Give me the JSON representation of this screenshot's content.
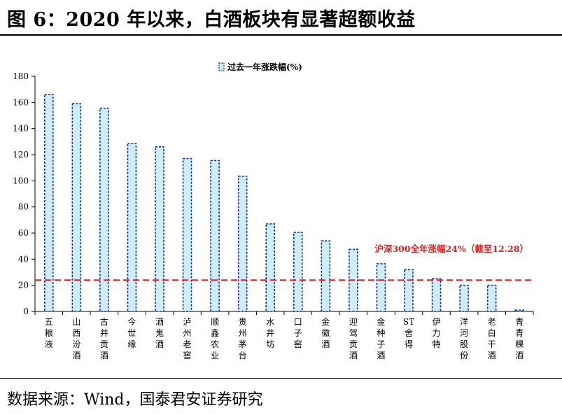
{
  "figure": {
    "title": "图 6：2020 年以来，白酒板块有显著超额收益",
    "source": "数据来源：Wind，国泰君安证券研究"
  },
  "chart_data": {
    "type": "bar",
    "categories": [
      "五粮液",
      "山西汾酒",
      "古井贡酒",
      "今世缘",
      "酒鬼酒",
      "泸州老窖",
      "顺鑫农业",
      "贵州茅台",
      "水井坊",
      "口子窖",
      "金徽酒",
      "迎驾贡酒",
      "金种子酒",
      "ST舍得",
      "伊力特",
      "洋河股份",
      "老白干酒",
      "青青稞酒"
    ],
    "series": [
      {
        "name": "过去一年涨跌幅(%)",
        "values": [
          166,
          159,
          155.5,
          128.5,
          126,
          117,
          115.5,
          103.5,
          67,
          60.5,
          54,
          47.5,
          36.5,
          32,
          25,
          20,
          20,
          1
        ]
      }
    ],
    "ylim": [
      0,
      180
    ],
    "yticks": [
      0,
      20,
      40,
      60,
      80,
      100,
      120,
      140,
      160,
      180
    ],
    "legend_position": "top",
    "reference_line": {
      "value": 24,
      "label": "沪深300全年涨幅24%（截至12.28）",
      "color": "#e02020"
    },
    "bar_fill": "#cdeef7",
    "bar_stroke": "#1a2d9a",
    "grid": false
  }
}
